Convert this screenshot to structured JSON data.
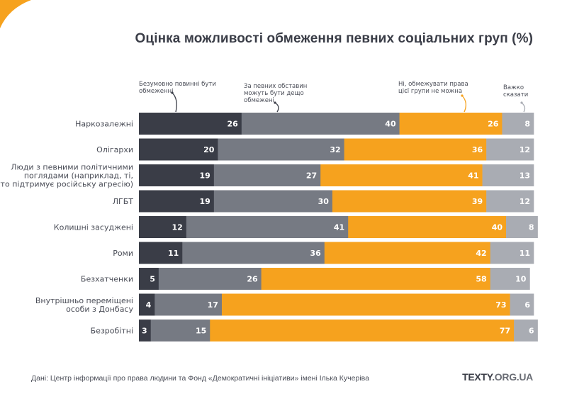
{
  "chart_data": {
    "type": "bar",
    "orientation": "horizontal",
    "stacked": true,
    "title": "Оцінка можливості обмеження певних соціальних груп (%)",
    "xlabel": "",
    "ylabel": "",
    "xlim": [
      0,
      100
    ],
    "grid": false,
    "legend_placement": "top",
    "categories": [
      [
        "Наркозалежні"
      ],
      [
        "Олігархи"
      ],
      [
        "Люди з певними політичними",
        "поглядами (наприклад, ті,",
        "хто підтримує російську агресію)"
      ],
      [
        "ЛГБТ"
      ],
      [
        "Колишні засуджені"
      ],
      [
        "Роми"
      ],
      [
        "Безхатченки"
      ],
      [
        "Внутрішньо переміщені",
        "особи з Донбасу"
      ],
      [
        "Безробітні"
      ]
    ],
    "series": [
      {
        "name": "Безумовно повинні бути обмеженні",
        "legend_lines": [
          "Безумовно повинні бути",
          "обмеженні"
        ],
        "color": "#3a3d47",
        "values": [
          26,
          20,
          19,
          19,
          12,
          11,
          5,
          4,
          3
        ]
      },
      {
        "name": "За певних обставин можуть бути дещо обмежені",
        "legend_lines": [
          "За певних обставин",
          "можуть бути дещо",
          "обмежені"
        ],
        "color": "#767a83",
        "values": [
          40,
          32,
          27,
          30,
          41,
          36,
          26,
          17,
          15
        ]
      },
      {
        "name": "Ні, обмежувати права цієї групи не можна",
        "legend_lines": [
          "Ні, обмежувати права",
          "цієї групи не можна"
        ],
        "color": "#f6a21e",
        "values": [
          26,
          36,
          41,
          39,
          40,
          42,
          58,
          73,
          77
        ]
      },
      {
        "name": "Важко сказати",
        "legend_lines": [
          "Важко",
          "сказати"
        ],
        "color": "#a9acb3",
        "values": [
          8,
          12,
          13,
          12,
          8,
          11,
          10,
          6,
          6
        ]
      }
    ]
  },
  "footer": {
    "source": "Дані: Центр інформації про права людини та Фонд «Демократичні ініціативи» імені Ілька Кучеріва",
    "logo_main": "TEXTY",
    "logo_domain": ".ORG.UA"
  },
  "colors": {
    "accent": "#f6a21e",
    "text": "#3a3d47"
  }
}
